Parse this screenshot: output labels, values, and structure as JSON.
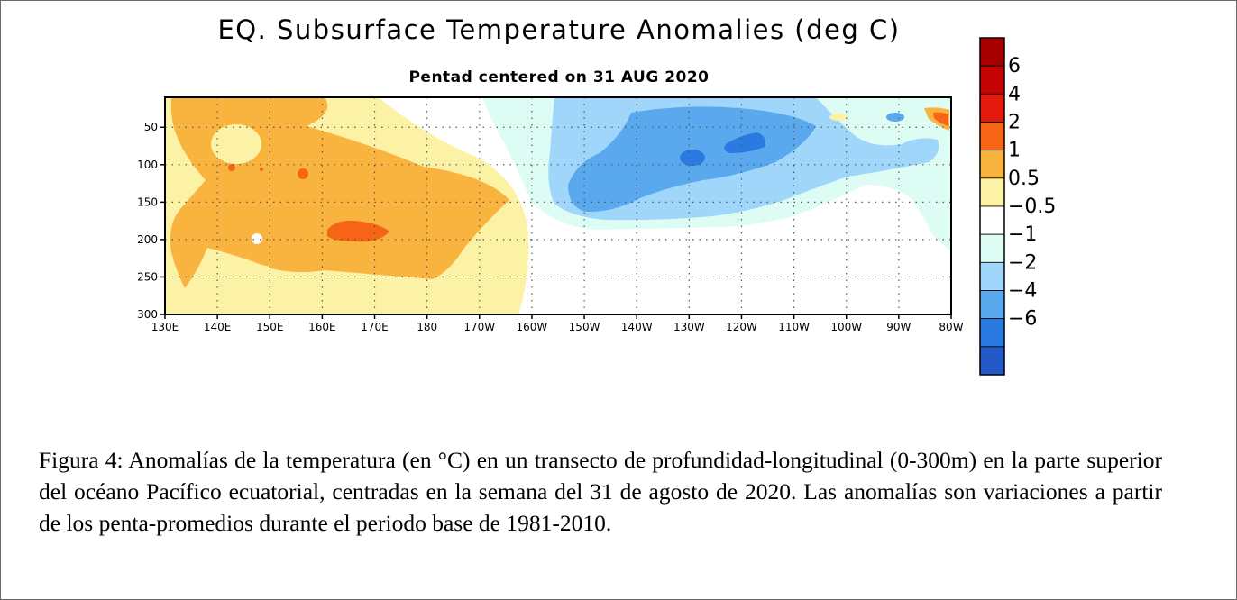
{
  "chart_data": {
    "type": "heatmap",
    "title": "EQ. Subsurface Temperature Anomalies (deg C)",
    "subtitle": "Pentad centered on 31 AUG 2020",
    "xlabel": "",
    "ylabel": "",
    "x_ticks": [
      "130E",
      "140E",
      "150E",
      "160E",
      "170E",
      "180",
      "170W",
      "160W",
      "150W",
      "140W",
      "130W",
      "120W",
      "110W",
      "100W",
      "90W",
      "80W"
    ],
    "x_range_deg_east": [
      130,
      280
    ],
    "y_ticks": [
      50,
      100,
      150,
      200,
      250,
      300
    ],
    "y_range_depth_m": [
      10,
      300
    ],
    "grid": "dotted",
    "legend_position": "right",
    "colorbar_labels": [
      "6",
      "4",
      "2",
      "1",
      "0.5",
      "−0.5",
      "−1",
      "−2",
      "−4",
      "−6"
    ],
    "colorbar_levels": [
      {
        "range": "> 8",
        "color": "#a80000"
      },
      {
        "range": "6 to 8",
        "color": "#c40404"
      },
      {
        "range": "4 to 6",
        "color": "#e41a0e"
      },
      {
        "range": "2 to 4",
        "color": "#f56515"
      },
      {
        "range": "1 to 2",
        "color": "#f9b33f"
      },
      {
        "range": "0.5 to 1",
        "color": "#fcf2a6"
      },
      {
        "range": "-0.5 to 0.5",
        "color": "#ffffff"
      },
      {
        "range": "-1 to -0.5",
        "color": "#dcfcf4"
      },
      {
        "range": "-2 to -1",
        "color": "#a0d6fa"
      },
      {
        "range": "-4 to -2",
        "color": "#5aa8ee"
      },
      {
        "range": "-6 to -4",
        "color": "#2a7ae2"
      },
      {
        "range": "< -6",
        "color": "#2358c6"
      }
    ],
    "features": [
      {
        "region": "western Pacific 130E-180, 10-300m",
        "anomaly": "+0.5 to +2",
        "color": "#f9b33f"
      },
      {
        "region": "near 165E-170E, ~190m",
        "anomaly": "+2 to +4",
        "color": "#f56515"
      },
      {
        "region": "central-eastern Pacific 155W-100W, 20-160m",
        "anomaly": "-1 to -4",
        "color": "#5aa8ee"
      },
      {
        "region": "near 130W and 120W, ~60-90m",
        "anomaly": "-4 to -6",
        "color": "#2a7ae2"
      },
      {
        "region": "far east near 82W, ~35m",
        "anomaly": "+2",
        "color": "#f56515"
      }
    ]
  },
  "caption": "Figura 4: Anomalías de la temperatura (en °C) en un transecto de profundidad-longitudinal (0-300m) en la parte superior del océano Pacífico ecuatorial, centradas en la semana del 31 de agosto de 2020. Las anomalías son variaciones a partir de los penta-promedios durante el periodo base de 1981-2010."
}
